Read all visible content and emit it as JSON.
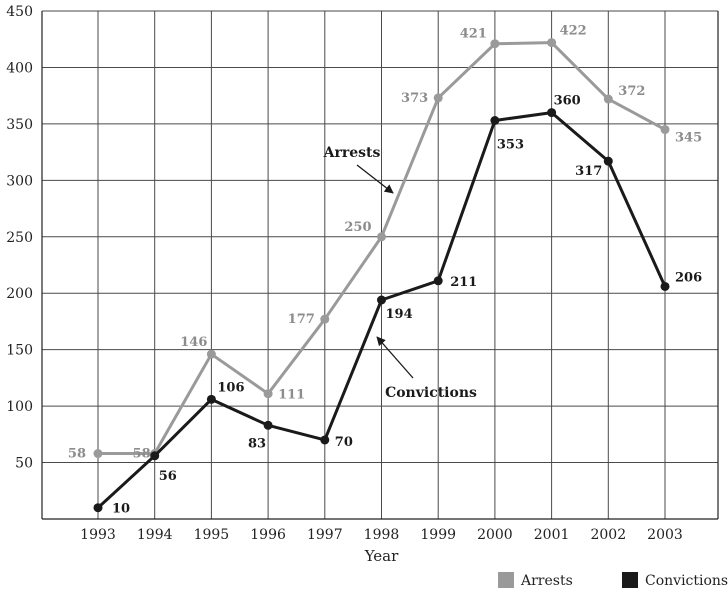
{
  "chart_data": {
    "type": "line",
    "categories": [
      "1993",
      "1994",
      "1995",
      "1996",
      "1997",
      "1998",
      "1999",
      "2000",
      "2001",
      "2002",
      "2003"
    ],
    "series": [
      {
        "name": "Arrests",
        "values": [
          58,
          58,
          146,
          111,
          177,
          250,
          373,
          421,
          422,
          372,
          345
        ],
        "color": "#9a9a9a"
      },
      {
        "name": "Convictions",
        "values": [
          10,
          56,
          106,
          83,
          70,
          194,
          211,
          353,
          360,
          317,
          206
        ],
        "color": "#1a1a1a"
      }
    ],
    "xlabel": "Year",
    "ylabel": "",
    "ylim": [
      0,
      450
    ],
    "yticks": [
      50,
      100,
      150,
      200,
      250,
      300,
      350,
      400,
      450
    ],
    "grid": true,
    "legend_position": "bottom-right",
    "annotations": [
      {
        "text": "Arrests",
        "series": "Arrests"
      },
      {
        "text": "Convictions",
        "series": "Convictions"
      }
    ]
  }
}
